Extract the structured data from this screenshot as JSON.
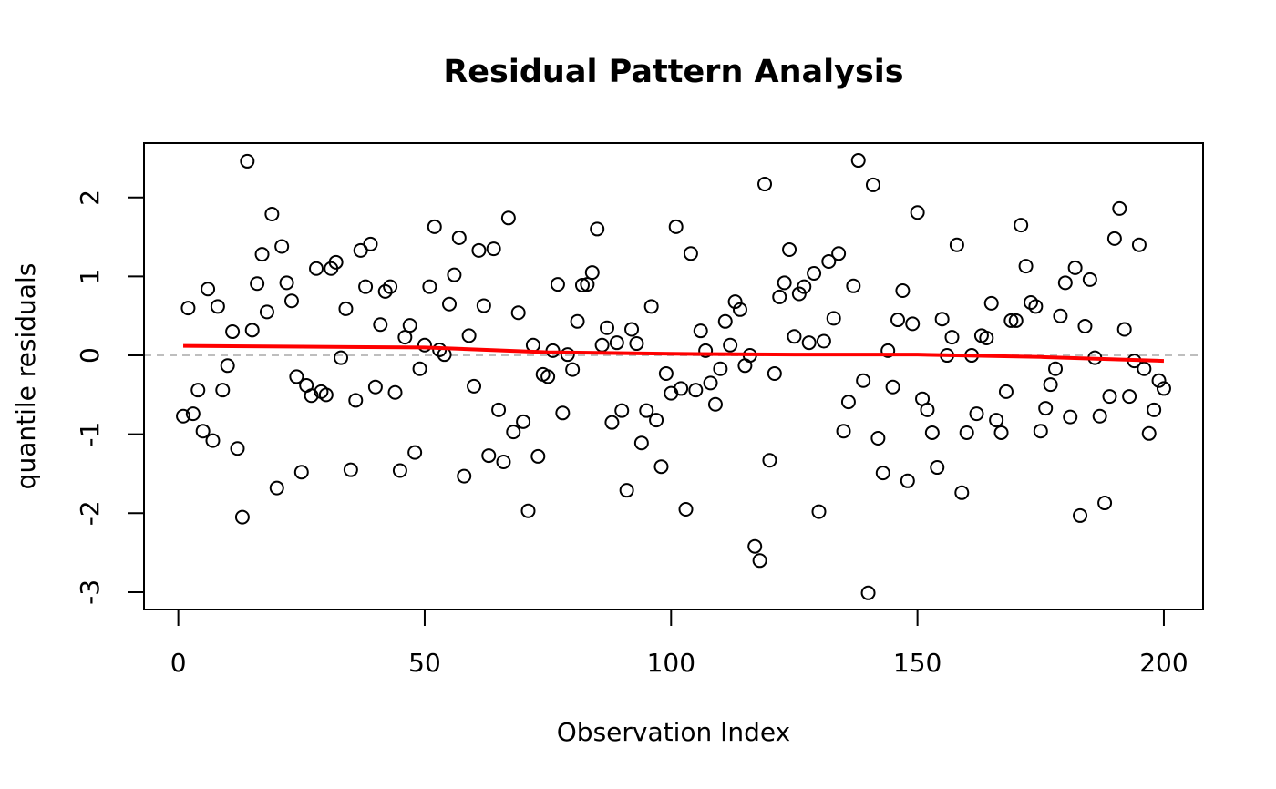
{
  "chart_data": {
    "type": "scatter",
    "title": "Residual Pattern Analysis",
    "xlabel": "Observation Index",
    "ylabel": "quantile residuals",
    "color": "#000000",
    "x": [
      1,
      2,
      3,
      4,
      5,
      6,
      7,
      8,
      9,
      10,
      11,
      12,
      13,
      14,
      15,
      16,
      17,
      18,
      19,
      20,
      21,
      22,
      23,
      24,
      25,
      26,
      27,
      28,
      29,
      30,
      31,
      32,
      33,
      34,
      35,
      36,
      37,
      38,
      39,
      40,
      41,
      42,
      43,
      44,
      45,
      46,
      47,
      48,
      49,
      50,
      51,
      52,
      53,
      54,
      55,
      56,
      57,
      58,
      59,
      60,
      61,
      62,
      63,
      64,
      65,
      66,
      67,
      68,
      69,
      70,
      71,
      72,
      73,
      74,
      75,
      76,
      77,
      78,
      79,
      80,
      81,
      82,
      83,
      84,
      85,
      86,
      87,
      88,
      89,
      90,
      91,
      92,
      93,
      94,
      95,
      96,
      97,
      98,
      99,
      100,
      101,
      102,
      103,
      104,
      105,
      106,
      107,
      108,
      109,
      110,
      111,
      112,
      113,
      114,
      115,
      116,
      117,
      118,
      119,
      120,
      121,
      122,
      123,
      124,
      125,
      126,
      127,
      128,
      129,
      130,
      131,
      132,
      133,
      134,
      135,
      136,
      137,
      138,
      139,
      140,
      141,
      142,
      143,
      144,
      145,
      146,
      147,
      148,
      149,
      150,
      151,
      152,
      153,
      154,
      155,
      156,
      157,
      158,
      159,
      160,
      161,
      162,
      163,
      164,
      165,
      166,
      167,
      168,
      169,
      170,
      171,
      172,
      173,
      174,
      175,
      176,
      177,
      178,
      179,
      180,
      181,
      182,
      183,
      184,
      185,
      186,
      187,
      188,
      189,
      190,
      191,
      192,
      193,
      194,
      195,
      196,
      197,
      198,
      199,
      200
    ],
    "values": [
      -0.77,
      0.6,
      -0.74,
      -0.44,
      -0.96,
      0.84,
      -1.08,
      0.62,
      -0.44,
      -0.13,
      0.3,
      -1.18,
      -2.05,
      2.46,
      0.32,
      0.91,
      1.28,
      0.55,
      1.79,
      -1.68,
      1.38,
      0.92,
      0.69,
      -0.27,
      -1.48,
      -0.38,
      -0.51,
      1.1,
      -0.46,
      -0.5,
      1.1,
      1.18,
      -0.03,
      0.59,
      -1.45,
      -0.57,
      1.33,
      0.87,
      1.41,
      -0.4,
      0.39,
      0.81,
      0.87,
      -0.47,
      -1.46,
      0.23,
      0.38,
      -1.23,
      -0.17,
      0.13,
      0.87,
      1.63,
      0.07,
      0.01,
      0.65,
      1.02,
      1.49,
      -1.53,
      0.25,
      -0.39,
      1.33,
      0.63,
      -1.27,
      1.35,
      -0.69,
      -1.35,
      1.74,
      -0.97,
      0.54,
      -0.84,
      -1.97,
      0.13,
      -1.28,
      -0.24,
      -0.27,
      0.06,
      0.9,
      -0.73,
      0.01,
      -0.18,
      0.43,
      0.89,
      0.9,
      1.05,
      1.6,
      0.13,
      0.35,
      -0.85,
      0.16,
      -0.7,
      -1.71,
      0.33,
      0.15,
      -1.11,
      -0.7,
      0.62,
      -0.82,
      -1.41,
      -0.23,
      -0.48,
      1.63,
      -0.42,
      -1.95,
      1.29,
      -0.44,
      0.31,
      0.06,
      -0.35,
      -0.62,
      -0.17,
      0.43,
      0.13,
      0.68,
      0.58,
      -0.13,
      0.0,
      -2.42,
      -2.6,
      2.17,
      -1.33,
      -0.23,
      0.74,
      0.92,
      1.34,
      0.24,
      0.78,
      0.87,
      0.16,
      1.04,
      -1.98,
      0.18,
      1.19,
      0.47,
      1.29,
      -0.96,
      -0.59,
      0.88,
      2.47,
      -0.32,
      -3.01,
      2.16,
      -1.05,
      -1.49,
      0.06,
      -0.4,
      0.45,
      0.82,
      -1.59,
      0.4,
      1.81,
      -0.55,
      -0.69,
      -0.98,
      -1.42,
      0.46,
      0.0,
      0.23,
      1.4,
      -1.74,
      -0.98,
      0.0,
      -0.74,
      0.25,
      0.22,
      0.66,
      -0.82,
      -0.98,
      -0.46,
      0.44,
      0.44,
      1.65,
      1.13,
      0.67,
      0.62,
      -0.96,
      -0.67,
      -0.37,
      -0.17,
      0.5,
      0.92,
      -0.78,
      1.11,
      -2.03,
      0.37,
      0.96,
      -0.03,
      -0.77,
      -1.87,
      -0.52,
      1.48,
      1.86,
      0.33,
      -0.52,
      -0.07,
      1.4,
      -0.17,
      -0.99,
      -0.69,
      -0.32,
      -0.42
    ],
    "smooth": {
      "color": "#ff0000",
      "x": [
        1,
        25,
        50,
        75,
        100,
        125,
        150,
        175,
        200
      ],
      "values": [
        0.12,
        0.11,
        0.1,
        0.04,
        0.02,
        0.01,
        0.01,
        -0.02,
        -0.07
      ]
    },
    "hline": {
      "value": 0,
      "color": "#bebebe"
    },
    "xlim": [
      -6.96,
      207.96
    ],
    "ylim": [
      -3.22,
      2.69
    ],
    "xticks": [
      0,
      50,
      100,
      150,
      200
    ],
    "yticks": [
      -3,
      -2,
      -1,
      0,
      1,
      2
    ]
  }
}
